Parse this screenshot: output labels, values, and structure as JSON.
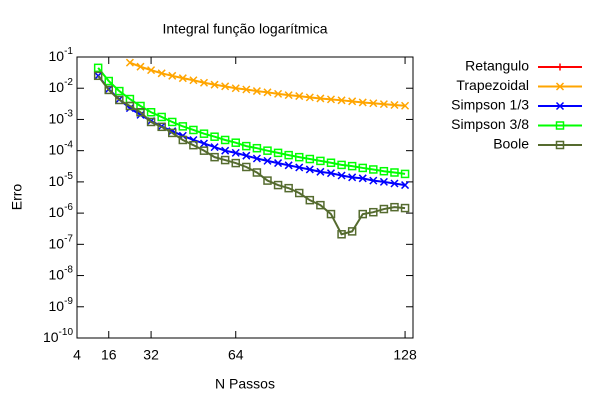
{
  "chart_data": {
    "type": "line",
    "title": "Integral função logarítmica",
    "xlabel": "N Passos",
    "ylabel": "Erro",
    "log_y": true,
    "legend": "outside-right",
    "xlim": [
      4,
      131
    ],
    "xticks": [
      4,
      16,
      32,
      64,
      128
    ],
    "ylim": [
      1e-10,
      0.1
    ],
    "yticks": [
      {
        "value": 1e-10,
        "label": "10-10"
      },
      {
        "value": 1e-09,
        "label": "10-9"
      },
      {
        "value": 1e-08,
        "label": "10-8"
      },
      {
        "value": 1e-07,
        "label": "10-7"
      },
      {
        "value": 1e-06,
        "label": "10-6"
      },
      {
        "value": 1e-05,
        "label": "10-5"
      },
      {
        "value": 0.0001,
        "label": "10-4"
      },
      {
        "value": 0.001,
        "label": "10-3"
      },
      {
        "value": 0.01,
        "label": "10-2"
      },
      {
        "value": 0.1,
        "label": "10-1"
      }
    ],
    "series": [
      {
        "name": "Retangulo",
        "color": "#ff0000",
        "marker": "plus",
        "x": [],
        "values": []
      },
      {
        "name": "Trapezoidal",
        "color": "#ffa500",
        "marker": "cross",
        "x": [
          24,
          28,
          32,
          36,
          40,
          44,
          48,
          52,
          56,
          60,
          64,
          68,
          72,
          76,
          80,
          84,
          88,
          92,
          96,
          100,
          104,
          108,
          112,
          116,
          120,
          124,
          128
        ],
        "values": [
          0.066,
          0.049,
          0.038,
          0.03,
          0.025,
          0.021,
          0.018,
          0.015,
          0.013,
          0.0115,
          0.01,
          0.0091,
          0.0081,
          0.0074,
          0.0066,
          0.006,
          0.0056,
          0.0051,
          0.0047,
          0.0044,
          0.0041,
          0.0038,
          0.0035,
          0.0033,
          0.0031,
          0.0029,
          0.00275
        ]
      },
      {
        "name": "Simpson 1/3",
        "color": "#0000ff",
        "marker": "cross",
        "x": [
          12,
          16,
          20,
          24,
          28,
          32,
          36,
          40,
          44,
          48,
          52,
          56,
          60,
          64,
          68,
          72,
          76,
          80,
          84,
          88,
          92,
          96,
          100,
          104,
          108,
          112,
          116,
          120,
          124,
          128
        ],
        "values": [
          0.025,
          0.0093,
          0.0044,
          0.0023,
          0.0014,
          0.00089,
          0.0006,
          0.00042,
          0.0003,
          0.00022,
          0.00017,
          0.00013,
          0.0001,
          8.5e-05,
          6.9e-05,
          5.6e-05,
          4.7e-05,
          4e-05,
          3.4e-05,
          2.9e-05,
          2.5e-05,
          2.1e-05,
          1.9e-05,
          1.6e-05,
          1.4e-05,
          1.3e-05,
          1.1e-05,
          1e-05,
          8.9e-06,
          7.9e-06
        ]
      },
      {
        "name": "Simpson 3/8",
        "color": "#00ff00",
        "marker": "square",
        "x": [
          12,
          16,
          20,
          24,
          28,
          32,
          36,
          40,
          44,
          48,
          52,
          56,
          60,
          64,
          68,
          72,
          76,
          80,
          84,
          88,
          92,
          96,
          100,
          104,
          108,
          112,
          116,
          120,
          124,
          128
        ],
        "values": [
          0.045,
          0.017,
          0.0081,
          0.0045,
          0.0027,
          0.0017,
          0.0012,
          0.00083,
          0.0006,
          0.00046,
          0.00035,
          0.00028,
          0.00022,
          0.00018,
          0.00014,
          0.00012,
          0.0001,
          8.5e-05,
          7.2e-05,
          6.2e-05,
          5.4e-05,
          4.7e-05,
          4.1e-05,
          3.5e-05,
          3.2e-05,
          2.8e-05,
          2.5e-05,
          2.2e-05,
          2e-05,
          1.8e-05
        ]
      },
      {
        "name": "Boole",
        "color": "#556b2f",
        "marker": "square",
        "x": [
          12,
          16,
          20,
          24,
          28,
          32,
          36,
          40,
          44,
          48,
          52,
          56,
          60,
          64,
          68,
          72,
          76,
          80,
          84,
          88,
          92,
          96,
          100,
          104,
          108,
          112,
          116,
          120,
          124,
          128
        ],
        "values": [
          0.025,
          0.0088,
          0.0042,
          0.0027,
          0.0017,
          0.00083,
          0.00058,
          0.00037,
          0.00022,
          0.00015,
          0.0001,
          6.2e-05,
          5e-05,
          4e-05,
          3e-05,
          2e-05,
          1.1e-05,
          7.9e-06,
          6.3e-06,
          4.4e-06,
          2.6e-06,
          1.8e-06,
          9.3e-07,
          2.1e-07,
          2.6e-07,
          9.3e-07,
          1.07e-06,
          1.35e-06,
          1.55e-06,
          1.45e-06
        ]
      }
    ]
  }
}
